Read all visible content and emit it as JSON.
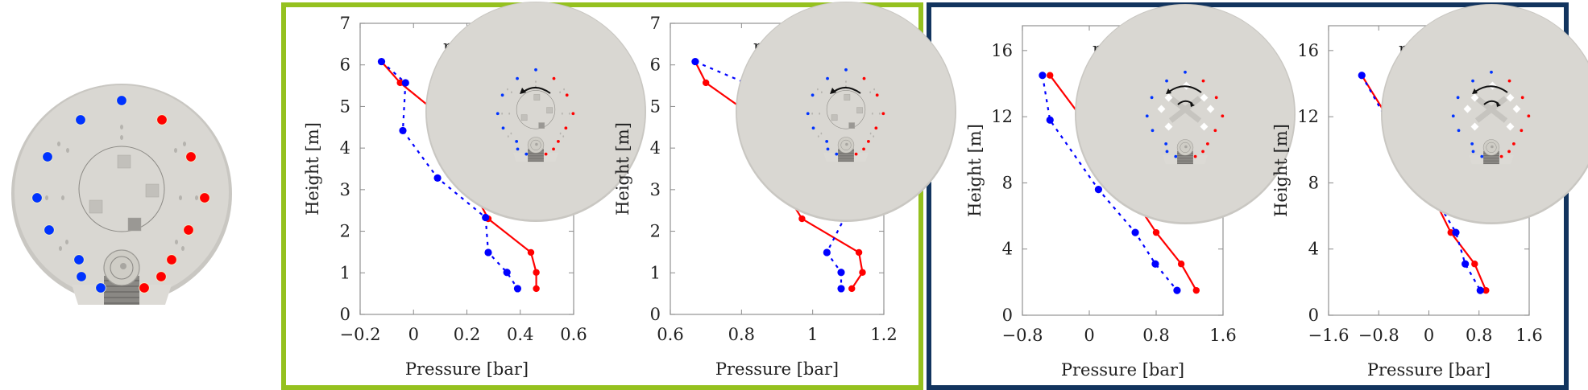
{
  "figure": {
    "frames": [
      {
        "name": "frame-green",
        "color": "#95c11f"
      },
      {
        "name": "frame-navy",
        "color": "#12345e"
      }
    ],
    "series_colors": {
      "right": "#ff0000",
      "left": "#0000ff"
    },
    "disk": {
      "body_color": "#d9d7d2",
      "dots": {
        "left_color": "#0033ff",
        "right_color": "#ff0000"
      }
    }
  },
  "chart_data": [
    {
      "type": "line",
      "group": "green",
      "inset_rotation": "counterclockwise-outer",
      "xlabel": "Pressure [bar]",
      "ylabel": "Height [m]",
      "xlim": [
        -0.2,
        0.6
      ],
      "ylim": [
        0,
        7
      ],
      "xticks": [
        -0.2,
        0,
        0.2,
        0.4,
        0.6
      ],
      "xtick_labels": [
        "−0.2",
        "0",
        "0.2",
        "0.4",
        "0.6"
      ],
      "yticks": [
        0,
        1,
        2,
        3,
        4,
        5,
        6,
        7
      ],
      "ytick_labels": [
        "0",
        "1",
        "2",
        "3",
        "4",
        "5",
        "6",
        "7"
      ],
      "legend": {
        "position": "top-right",
        "entries": [
          "right",
          "left"
        ]
      },
      "grid": false,
      "series": [
        {
          "name": "right",
          "style": "solid",
          "x": [
            -0.12,
            -0.05,
            0.17,
            0.2,
            0.28,
            0.44,
            0.46,
            0.46
          ],
          "y": [
            6.08,
            5.57,
            4.42,
            3.27,
            2.3,
            1.49,
            1.01,
            0.62
          ],
          "markers_from_index": 1
        },
        {
          "name": "left",
          "style": "dashed",
          "x": [
            -0.12,
            -0.03,
            -0.04,
            0.09,
            0.27,
            0.28,
            0.35,
            0.39
          ],
          "y": [
            6.08,
            5.57,
            4.42,
            3.28,
            2.33,
            1.49,
            1.01,
            0.62
          ],
          "markers_from_index": 0
        }
      ]
    },
    {
      "type": "line",
      "group": "green",
      "inset_rotation": "counterclockwise-outer",
      "xlabel": "Pressure [bar]",
      "ylabel": "Height [m]",
      "xlim": [
        0.6,
        1.2
      ],
      "ylim": [
        0,
        7
      ],
      "xticks": [
        0.6,
        0.8,
        1.0,
        1.2
      ],
      "xtick_labels": [
        "0.6",
        "0.8",
        "1",
        "1.2"
      ],
      "yticks": [
        0,
        1,
        2,
        3,
        4,
        5,
        6,
        7
      ],
      "ytick_labels": [
        "0",
        "1",
        "2",
        "3",
        "4",
        "5",
        "6",
        "7"
      ],
      "legend": {
        "position": "top-right",
        "entries": [
          "right",
          "left"
        ]
      },
      "grid": false,
      "series": [
        {
          "name": "right",
          "style": "solid",
          "x": [
            0.67,
            0.7,
            0.89,
            0.9,
            0.97,
            1.13,
            1.14,
            1.11
          ],
          "y": [
            6.08,
            5.57,
            4.42,
            3.27,
            2.3,
            1.49,
            1.01,
            0.62
          ],
          "markers_from_index": 1
        },
        {
          "name": "left",
          "style": "dashed",
          "x": [
            0.67,
            0.81,
            0.81,
            0.93,
            1.09,
            1.04,
            1.08,
            1.08
          ],
          "y": [
            6.08,
            5.57,
            4.42,
            3.28,
            2.33,
            1.49,
            1.01,
            0.62
          ],
          "markers_from_index": 0
        }
      ]
    },
    {
      "type": "line",
      "group": "navy",
      "inset_rotation": "counter-rotating-inner-outer",
      "xlabel": "Pressure [bar]",
      "ylabel": "Height [m]",
      "xlim": [
        -0.8,
        1.6
      ],
      "ylim": [
        0,
        17.5
      ],
      "xticks": [
        -0.8,
        0,
        0.8,
        1.6
      ],
      "xtick_labels": [
        "−0.8",
        "0",
        "0.8",
        "1.6"
      ],
      "yticks": [
        0,
        4,
        8,
        12,
        16
      ],
      "ytick_labels": [
        "0",
        "4",
        "8",
        "12",
        "16"
      ],
      "legend": {
        "position": "top-right",
        "entries": [
          "right",
          "left"
        ]
      },
      "grid": false,
      "series": [
        {
          "name": "right",
          "style": "solid",
          "x": [
            -0.47,
            -0.07,
            0.46,
            0.8,
            1.1,
            1.28
          ],
          "y": [
            14.5,
            11.8,
            7.6,
            5.0,
            3.1,
            1.5
          ],
          "markers_from_index": 0
        },
        {
          "name": "left",
          "style": "dashed",
          "x": [
            -0.56,
            -0.47,
            0.11,
            0.55,
            0.79,
            1.05
          ],
          "y": [
            14.5,
            11.8,
            7.6,
            5.0,
            3.1,
            1.5
          ],
          "markers_from_index": 0
        }
      ]
    },
    {
      "type": "line",
      "group": "navy",
      "inset_rotation": "counter-rotating-inner-outer",
      "xlabel": "Pressure [bar]",
      "ylabel": "Height [m]",
      "xlim": [
        -1.6,
        1.6
      ],
      "ylim": [
        0,
        17.5
      ],
      "xticks": [
        -1.6,
        -0.8,
        0,
        0.8,
        1.6
      ],
      "xtick_labels": [
        "−1.6",
        "−0.8",
        "0",
        "0.8",
        "1.6"
      ],
      "yticks": [
        0,
        4,
        8,
        12,
        16
      ],
      "ytick_labels": [
        "0",
        "4",
        "8",
        "12",
        "16"
      ],
      "legend": {
        "position": "top-right",
        "entries": [
          "right",
          "left"
        ]
      },
      "grid": false,
      "series": [
        {
          "name": "right",
          "style": "solid",
          "x": [
            -1.07,
            -0.63,
            0.01,
            0.35,
            0.73,
            0.91
          ],
          "y": [
            14.5,
            11.8,
            7.6,
            5.0,
            3.1,
            1.5
          ],
          "markers_from_index": 0
        },
        {
          "name": "left",
          "style": "dashed",
          "x": [
            -1.07,
            -0.67,
            0.02,
            0.43,
            0.58,
            0.82
          ],
          "y": [
            14.5,
            11.8,
            7.6,
            5.0,
            3.1,
            1.5
          ],
          "markers_from_index": 0
        }
      ]
    }
  ]
}
